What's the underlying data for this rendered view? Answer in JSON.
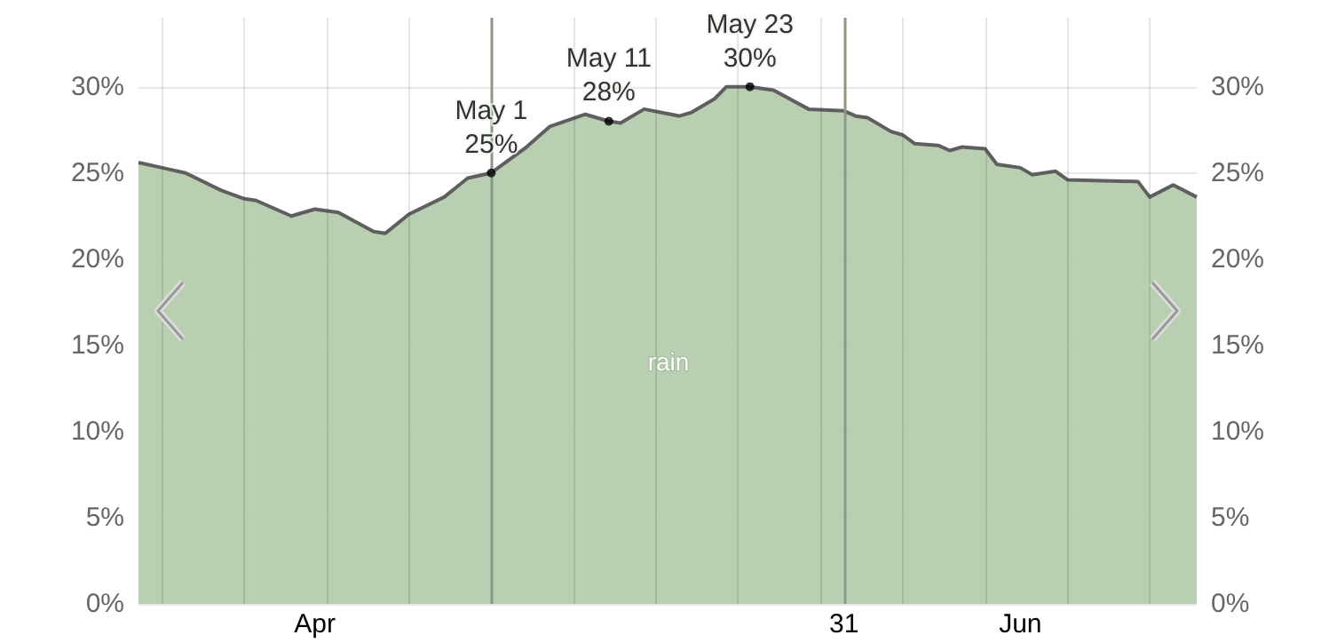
{
  "chart_data": {
    "type": "area",
    "x": [
      "--04-01",
      "--04-03",
      "--04-05",
      "--04-08",
      "--04-10",
      "--04-11",
      "--04-14",
      "--04-16",
      "--04-18",
      "--04-21",
      "--04-22",
      "--04-24",
      "--04-27",
      "--04-29",
      "--05-01",
      "--05-04",
      "--05-06",
      "--05-09",
      "--05-11",
      "--05-12",
      "--05-14",
      "--05-17",
      "--05-18",
      "--05-20",
      "--05-21",
      "--05-23",
      "--05-25",
      "--05-28",
      "--05-31",
      "--06-01",
      "--06-02",
      "--06-04",
      "--06-05",
      "--06-06",
      "--06-08",
      "--06-09",
      "--06-10",
      "--06-12",
      "--06-13",
      "--06-15",
      "--06-16",
      "--06-18",
      "--06-19",
      "--06-25",
      "--06-26",
      "--06-28",
      "--06-30"
    ],
    "series": [
      {
        "name": "rain",
        "color": "#b3cbab",
        "values": [
          25.6,
          25.3,
          25.0,
          24.0,
          23.5,
          23.4,
          22.5,
          22.9,
          22.7,
          21.6,
          21.5,
          22.6,
          23.6,
          24.7,
          25,
          26.5,
          27.7,
          28.4,
          28,
          27.9,
          28.7,
          28.3,
          28.5,
          29.3,
          30.0,
          30,
          29.8,
          28.7,
          28.6,
          28.3,
          28.2,
          27.4,
          27.2,
          26.7,
          26.6,
          26.3,
          26.5,
          26.4,
          25.5,
          25.3,
          24.9,
          25.1,
          24.6,
          24.5,
          23.6,
          24.3,
          23.6
        ]
      }
    ],
    "xlim": [
      "--04-01",
      "--06-30"
    ],
    "xticks": [
      {
        "value": "--04-03",
        "label": null
      },
      {
        "value": "--04-10",
        "label": null
      },
      {
        "value": "--04-16",
        "label": "Apr"
      },
      {
        "value": "--04-17",
        "label": null
      },
      {
        "value": "--04-24",
        "label": null
      },
      {
        "value": "--05-08",
        "label": null
      },
      {
        "value": "--05-15",
        "label": null
      },
      {
        "value": "--05-22",
        "label": null
      },
      {
        "value": "--05-29",
        "label": null
      },
      {
        "value": "--05-31",
        "label": "31"
      },
      {
        "value": "--06-05",
        "label": null
      },
      {
        "value": "--06-12",
        "label": null
      },
      {
        "value": "--06-15",
        "label": "Jun"
      },
      {
        "value": "--06-19",
        "label": null
      },
      {
        "value": "--06-26",
        "label": null
      }
    ],
    "ylim": [
      0,
      34
    ],
    "yticks": [
      {
        "value": 0,
        "label": "0%"
      },
      {
        "value": 5,
        "label": "5%"
      },
      {
        "value": 10,
        "label": "10%"
      },
      {
        "value": 15,
        "label": "15%"
      },
      {
        "value": 20,
        "label": "20%"
      },
      {
        "value": 25,
        "label": "25%"
      },
      {
        "value": 30,
        "label": "30%"
      }
    ],
    "y2lim": [
      0,
      34
    ],
    "y2ticks": [
      {
        "value": 0,
        "label": "0%"
      },
      {
        "value": 5,
        "label": "5%"
      },
      {
        "value": 10,
        "label": "10%"
      },
      {
        "value": 15,
        "label": "15%"
      },
      {
        "value": 20,
        "label": "20%"
      },
      {
        "value": 25,
        "label": "25%"
      },
      {
        "value": 30,
        "label": "30%"
      }
    ],
    "ref_lines": [
      {
        "axis": "x",
        "value": "--05-01",
        "label": null,
        "color": "#8a9a86"
      },
      {
        "axis": "x",
        "value": "--05-31",
        "label": null,
        "color": "#8a9a86"
      }
    ],
    "annotations": [
      {
        "text": "May 1\n25%",
        "x": "--05-01",
        "y": 25
      },
      {
        "text": "May 11\n28%",
        "x": "--05-11",
        "y": 28
      },
      {
        "text": "May 23\n30%",
        "x": "--05-23",
        "y": 30
      }
    ],
    "grid": true,
    "legend": false,
    "marker": "none"
  }
}
